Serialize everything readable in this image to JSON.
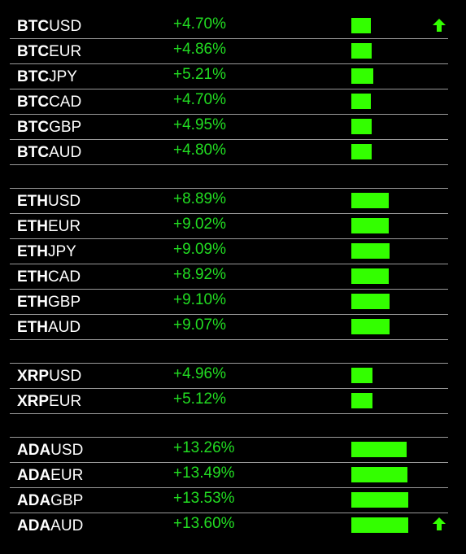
{
  "groups": [
    {
      "rows": [
        {
          "base": "BTC",
          "quote": "USD",
          "change": 4.7,
          "label": "+4.70%"
        },
        {
          "base": "BTC",
          "quote": "EUR",
          "change": 4.86,
          "label": "+4.86%"
        },
        {
          "base": "BTC",
          "quote": "JPY",
          "change": 5.21,
          "label": "+5.21%"
        },
        {
          "base": "BTC",
          "quote": "CAD",
          "change": 4.7,
          "label": "+4.70%"
        },
        {
          "base": "BTC",
          "quote": "GBP",
          "change": 4.95,
          "label": "+4.95%"
        },
        {
          "base": "BTC",
          "quote": "AUD",
          "change": 4.8,
          "label": "+4.80%"
        }
      ]
    },
    {
      "rows": [
        {
          "base": "ETH",
          "quote": "USD",
          "change": 8.89,
          "label": "+8.89%"
        },
        {
          "base": "ETH",
          "quote": "EUR",
          "change": 9.02,
          "label": "+9.02%"
        },
        {
          "base": "ETH",
          "quote": "JPY",
          "change": 9.09,
          "label": "+9.09%"
        },
        {
          "base": "ETH",
          "quote": "CAD",
          "change": 8.92,
          "label": "+8.92%"
        },
        {
          "base": "ETH",
          "quote": "GBP",
          "change": 9.1,
          "label": "+9.10%"
        },
        {
          "base": "ETH",
          "quote": "AUD",
          "change": 9.07,
          "label": "+9.07%"
        }
      ]
    },
    {
      "rows": [
        {
          "base": "XRP",
          "quote": "USD",
          "change": 4.96,
          "label": "+4.96%"
        },
        {
          "base": "XRP",
          "quote": "EUR",
          "change": 5.12,
          "label": "+5.12%"
        }
      ]
    },
    {
      "rows": [
        {
          "base": "ADA",
          "quote": "USD",
          "change": 13.26,
          "label": "+13.26%"
        },
        {
          "base": "ADA",
          "quote": "EUR",
          "change": 13.49,
          "label": "+13.49%"
        },
        {
          "base": "ADA",
          "quote": "GBP",
          "change": 13.53,
          "label": "+13.53%"
        },
        {
          "base": "ADA",
          "quote": "AUD",
          "change": 13.6,
          "label": "+13.60%"
        }
      ]
    }
  ]
}
